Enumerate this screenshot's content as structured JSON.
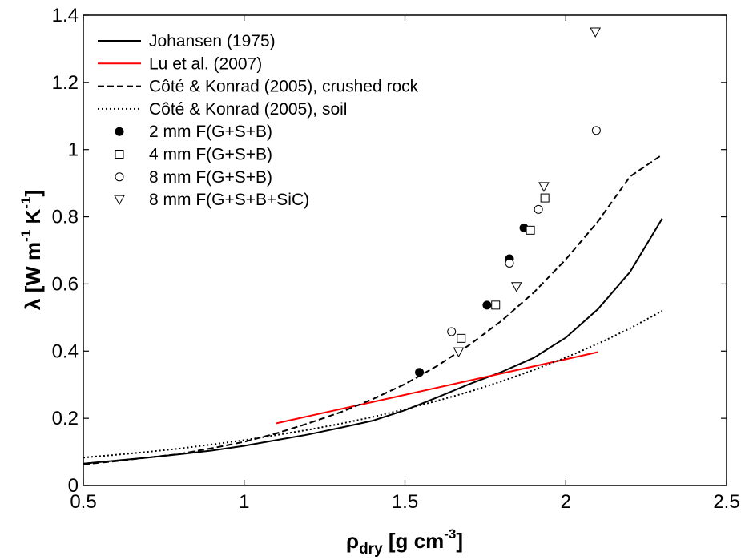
{
  "chart_data": {
    "type": "line",
    "title": "",
    "xlabel": {
      "base": "ρ",
      "sub": "dry",
      "rest": " [g cm",
      "sup": "-3",
      "end": "]"
    },
    "ylabel": {
      "base": "λ [W m",
      "sup1": "-1",
      "mid": " K",
      "sup2": "-1",
      "end": "]"
    },
    "xlim": [
      0.5,
      2.5
    ],
    "ylim": [
      0,
      1.4
    ],
    "xticks": [
      0.5,
      1,
      1.5,
      2,
      2.5
    ],
    "xtick_labels": [
      "0.5",
      "1",
      "1.5",
      "2",
      "2.5"
    ],
    "yticks": [
      0,
      0.2,
      0.4,
      0.6,
      0.8,
      1,
      1.2,
      1.4
    ],
    "ytick_labels": [
      "0",
      "0.2",
      "0.4",
      "0.6",
      "0.8",
      "1",
      "1.2",
      "1.4"
    ],
    "grid": false,
    "legend_position": "top-left",
    "series": [
      {
        "name": "Johansen (1975)",
        "kind": "line",
        "color": "#000000",
        "dash": "solid",
        "x": [
          0.5,
          0.6,
          0.7,
          0.8,
          0.9,
          1.0,
          1.1,
          1.2,
          1.3,
          1.4,
          1.5,
          1.6,
          1.7,
          1.8,
          1.9,
          2.0,
          2.1,
          2.2,
          2.3
        ],
        "y": [
          0.065,
          0.074,
          0.083,
          0.093,
          0.104,
          0.118,
          0.135,
          0.152,
          0.172,
          0.193,
          0.224,
          0.262,
          0.302,
          0.338,
          0.38,
          0.44,
          0.525,
          0.636,
          0.795
        ]
      },
      {
        "name": "Lu et al. (2007)",
        "kind": "line",
        "color": "#ff0000",
        "dash": "solid",
        "x": [
          1.1,
          2.1
        ],
        "y": [
          0.185,
          0.397
        ]
      },
      {
        "name": "Côté & Konrad (2005), crushed rock",
        "kind": "line",
        "color": "#000000",
        "dash": "dashed",
        "x": [
          0.5,
          0.6,
          0.7,
          0.8,
          0.9,
          1.0,
          1.1,
          1.2,
          1.3,
          1.4,
          1.5,
          1.6,
          1.7,
          1.8,
          1.9,
          2.0,
          2.1,
          2.2,
          2.3
        ],
        "y": [
          0.063,
          0.072,
          0.083,
          0.094,
          0.111,
          0.13,
          0.155,
          0.185,
          0.218,
          0.257,
          0.302,
          0.356,
          0.418,
          0.49,
          0.574,
          0.673,
          0.786,
          0.92,
          0.985
        ]
      },
      {
        "name": "Côté & Konrad (2005), soil",
        "kind": "line",
        "color": "#000000",
        "dash": "dotted",
        "x": [
          0.5,
          0.6,
          0.7,
          0.8,
          0.9,
          1.0,
          1.1,
          1.2,
          1.3,
          1.4,
          1.5,
          1.6,
          1.7,
          1.8,
          1.9,
          2.0,
          2.1,
          2.2,
          2.3
        ],
        "y": [
          0.083,
          0.091,
          0.1,
          0.11,
          0.122,
          0.135,
          0.15,
          0.166,
          0.184,
          0.204,
          0.227,
          0.252,
          0.279,
          0.31,
          0.344,
          0.381,
          0.422,
          0.468,
          0.52
        ]
      },
      {
        "name": "2 mm F(G+S+B)",
        "kind": "marker",
        "marker": "filled-circle",
        "x": [
          1.545,
          1.755,
          1.825,
          1.87
        ],
        "y": [
          0.337,
          0.537,
          0.675,
          0.767
        ]
      },
      {
        "name": "4 mm F(G+S+B)",
        "kind": "marker",
        "marker": "square",
        "x": [
          1.675,
          1.782,
          1.89,
          1.935
        ],
        "y": [
          0.438,
          0.537,
          0.76,
          0.856
        ]
      },
      {
        "name": "8 mm F(G+S+B)",
        "kind": "marker",
        "marker": "open-circle",
        "x": [
          1.645,
          1.825,
          1.915,
          2.095
        ],
        "y": [
          0.458,
          0.662,
          0.822,
          1.057
        ]
      },
      {
        "name": "8 mm F(G+S+B+SiC)",
        "kind": "marker",
        "marker": "triangle-down",
        "x": [
          1.667,
          1.847,
          1.932,
          2.092
        ],
        "y": [
          0.398,
          0.592,
          0.89,
          1.35
        ]
      }
    ]
  }
}
